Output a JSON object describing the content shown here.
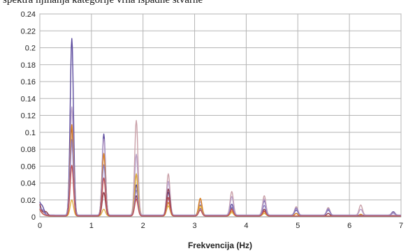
{
  "caption_fragment": "spektra njihanja kategorije vrha ispadne stvarne",
  "chart_data": {
    "type": "line",
    "title": "",
    "xlabel": "Frekvencija (Hz)",
    "ylabel": "",
    "xlim": [
      0,
      7
    ],
    "ylim": [
      0,
      0.24
    ],
    "x_ticks": [
      "0",
      "1",
      "2",
      "3",
      "4",
      "5",
      "6",
      "7"
    ],
    "y_ticks": [
      "0",
      "0.02",
      "0.04",
      "0.06",
      "0.08",
      "0.1",
      "0.12",
      "0.14",
      "0.16",
      "0.18",
      "0.2",
      "0.22",
      "0.24"
    ],
    "grid": true,
    "legend": "none",
    "colors": [
      "#5b4a9e",
      "#c9a0a8",
      "#b8a0c8",
      "#8a3a4a",
      "#d98020",
      "#e0b040",
      "#9080c0",
      "#c05050"
    ],
    "peak_width": 0.045,
    "series": [
      {
        "color": "#5b4a9e",
        "baseline": 0.002,
        "peaks": [
          [
            0.05,
            0.006
          ],
          [
            0.62,
            0.209
          ],
          [
            1.24,
            0.096
          ],
          [
            1.87,
            0.036
          ],
          [
            2.49,
            0.027
          ],
          [
            3.11,
            0.012
          ],
          [
            3.72,
            0.013
          ],
          [
            4.35,
            0.017
          ],
          [
            4.97,
            0.006
          ],
          [
            5.59,
            0.006
          ],
          [
            6.85,
            0.004
          ]
        ]
      },
      {
        "color": "#c9a0a8",
        "baseline": 0.002,
        "peaks": [
          [
            0.62,
            0.085
          ],
          [
            1.24,
            0.072
          ],
          [
            1.87,
            0.112
          ],
          [
            2.49,
            0.049
          ],
          [
            3.11,
            0.019
          ],
          [
            3.72,
            0.028
          ],
          [
            4.35,
            0.023
          ],
          [
            4.97,
            0.01
          ],
          [
            5.59,
            0.009
          ],
          [
            6.22,
            0.012
          ],
          [
            6.85,
            0.003
          ]
        ]
      },
      {
        "color": "#b8a0c8",
        "baseline": 0.002,
        "peaks": [
          [
            0.62,
            0.128
          ],
          [
            1.24,
            0.09
          ],
          [
            1.87,
            0.072
          ],
          [
            2.49,
            0.04
          ],
          [
            3.11,
            0.016
          ],
          [
            3.72,
            0.022
          ],
          [
            4.35,
            0.019
          ],
          [
            4.97,
            0.008
          ],
          [
            5.59,
            0.007
          ],
          [
            6.22,
            0.007
          ]
        ]
      },
      {
        "color": "#8a3a4a",
        "baseline": 0.001,
        "peaks": [
          [
            0.12,
            0.004
          ],
          [
            0.62,
            0.105
          ],
          [
            1.24,
            0.028
          ],
          [
            1.87,
            0.024
          ],
          [
            2.49,
            0.032
          ],
          [
            3.11,
            0.009
          ],
          [
            3.72,
            0.009
          ],
          [
            4.35,
            0.008
          ],
          [
            4.97,
            0.003
          ],
          [
            5.59,
            0.003
          ]
        ]
      },
      {
        "color": "#d98020",
        "baseline": 0.001,
        "peaks": [
          [
            0.62,
            0.108
          ],
          [
            1.24,
            0.074
          ],
          [
            1.87,
            0.049
          ],
          [
            2.49,
            0.016
          ],
          [
            3.11,
            0.021
          ],
          [
            3.72,
            0.006
          ],
          [
            4.35,
            0.005
          ],
          [
            4.97,
            0.003
          ],
          [
            6.22,
            0.002
          ]
        ]
      },
      {
        "color": "#e0b040",
        "baseline": 0.001,
        "peaks": [
          [
            0.62,
            0.019
          ],
          [
            1.24,
            0.008
          ],
          [
            1.87,
            0.05
          ],
          [
            2.49,
            0.012
          ],
          [
            3.11,
            0.012
          ],
          [
            3.72,
            0.004
          ],
          [
            4.35,
            0.003
          ]
        ]
      },
      {
        "color": "#9080c0",
        "baseline": 0.0015,
        "peaks": [
          [
            0.05,
            0.004
          ],
          [
            0.62,
            0.09
          ],
          [
            1.24,
            0.06
          ],
          [
            1.87,
            0.03
          ],
          [
            2.49,
            0.02
          ],
          [
            3.11,
            0.008
          ],
          [
            3.72,
            0.01
          ],
          [
            4.35,
            0.012
          ],
          [
            4.97,
            0.009
          ],
          [
            5.59,
            0.008
          ],
          [
            6.85,
            0.003
          ]
        ]
      },
      {
        "color": "#c05050",
        "baseline": 0.001,
        "peaks": [
          [
            0.62,
            0.06
          ],
          [
            1.24,
            0.045
          ],
          [
            1.87,
            0.02
          ],
          [
            2.49,
            0.022
          ],
          [
            3.11,
            0.007
          ],
          [
            3.72,
            0.008
          ],
          [
            4.35,
            0.006
          ]
        ]
      }
    ]
  }
}
